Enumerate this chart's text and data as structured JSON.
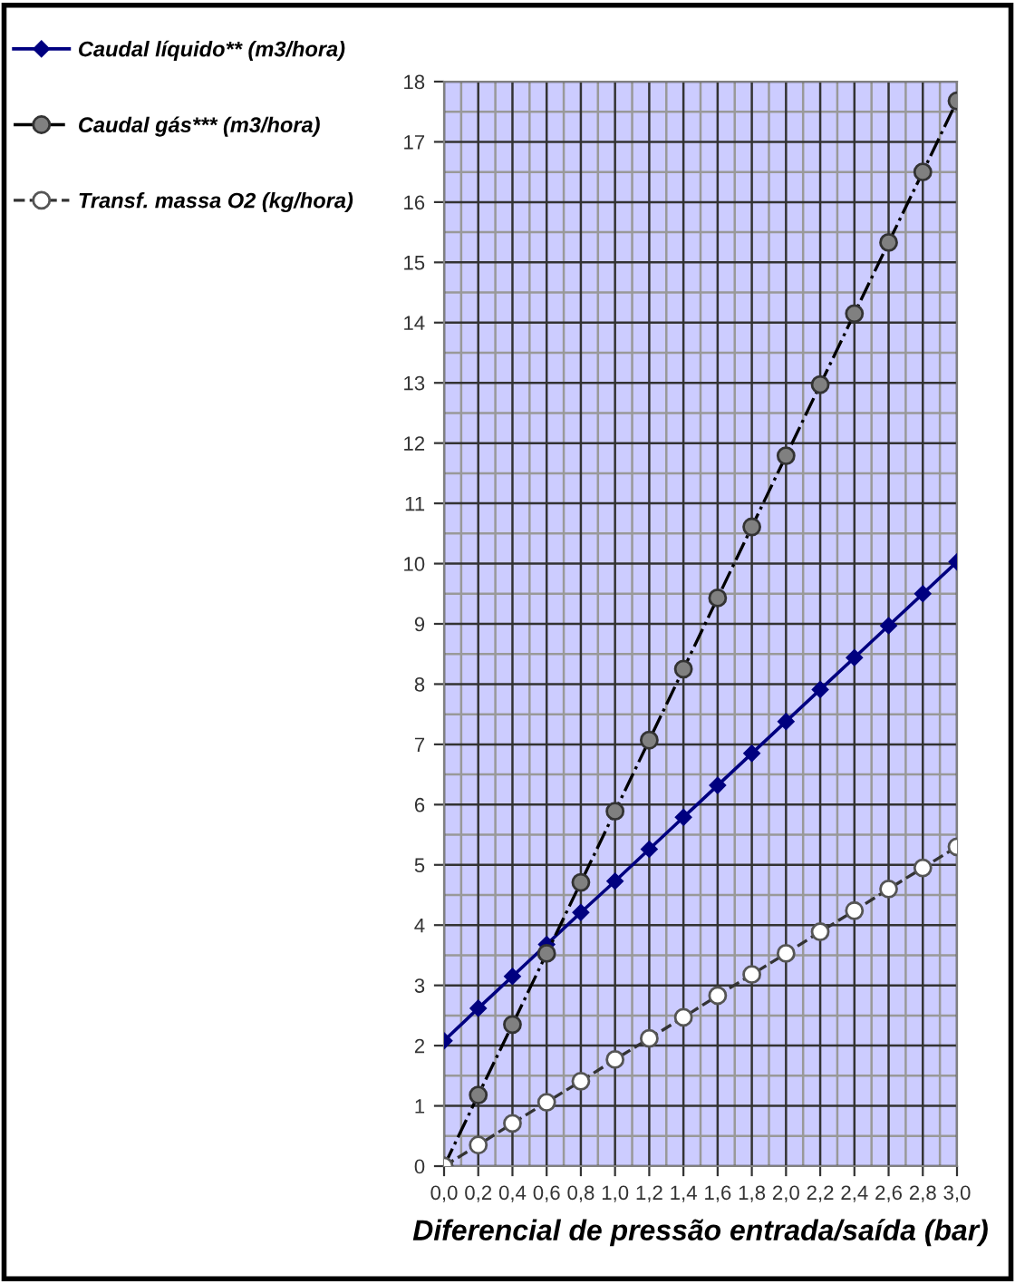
{
  "chart_data": {
    "type": "line",
    "xlabel": "Diferencial de pressão entrada/saída (bar)",
    "x": [
      0,
      0.2,
      0.4,
      0.6,
      0.8,
      1.0,
      1.2,
      1.4,
      1.6,
      1.8,
      2.0,
      2.2,
      2.4,
      2.6,
      2.8,
      3.0
    ],
    "series": [
      {
        "name": "Caudal líquido** (m3/hora)",
        "color": "#000080",
        "marker": "diamond",
        "line_style": "solid",
        "values": [
          2.08,
          2.62,
          3.15,
          3.68,
          4.21,
          4.73,
          5.26,
          5.79,
          6.32,
          6.85,
          7.38,
          7.91,
          8.44,
          8.97,
          9.5,
          10.03
        ]
      },
      {
        "name": "Caudal gás*** (m3/hora)",
        "color": "#808080",
        "marker": "circle",
        "line_style": "dashdot",
        "values": [
          0,
          1.18,
          2.35,
          3.53,
          4.71,
          5.89,
          7.07,
          8.25,
          9.43,
          10.61,
          11.79,
          12.97,
          14.15,
          15.33,
          16.5,
          17.68
        ]
      },
      {
        "name": "Transf. massa O2 (kg/hora)",
        "color": "#ffffff",
        "marker": "circle",
        "line_style": "dashed",
        "values": [
          0,
          0.35,
          0.71,
          1.06,
          1.41,
          1.77,
          2.12,
          2.47,
          2.83,
          3.18,
          3.53,
          3.89,
          4.24,
          4.6,
          4.95,
          5.3
        ]
      }
    ],
    "xlim": [
      0,
      3.0
    ],
    "xticks": [
      {
        "value": 0,
        "label": "0,0"
      },
      {
        "value": 0.2,
        "label": "0,2"
      },
      {
        "value": 0.4,
        "label": "0,4"
      },
      {
        "value": 0.6,
        "label": "0,6"
      },
      {
        "value": 0.8,
        "label": "0,8"
      },
      {
        "value": 1.0,
        "label": "1,0"
      },
      {
        "value": 1.2,
        "label": "1,2"
      },
      {
        "value": 1.4,
        "label": "1,4"
      },
      {
        "value": 1.6,
        "label": "1,6"
      },
      {
        "value": 1.8,
        "label": "1,8"
      },
      {
        "value": 2.0,
        "label": "2,0"
      },
      {
        "value": 2.2,
        "label": "2,2"
      },
      {
        "value": 2.4,
        "label": "2,4"
      },
      {
        "value": 2.6,
        "label": "2,6"
      },
      {
        "value": 2.8,
        "label": "2,8"
      },
      {
        "value": 3.0,
        "label": "3,0"
      }
    ],
    "ylim": [
      0,
      18
    ],
    "yticks": [
      0,
      1,
      2,
      3,
      4,
      5,
      6,
      7,
      8,
      9,
      10,
      11,
      12,
      13,
      14,
      15,
      16,
      17,
      18
    ],
    "grid": true,
    "legend": "top left"
  }
}
